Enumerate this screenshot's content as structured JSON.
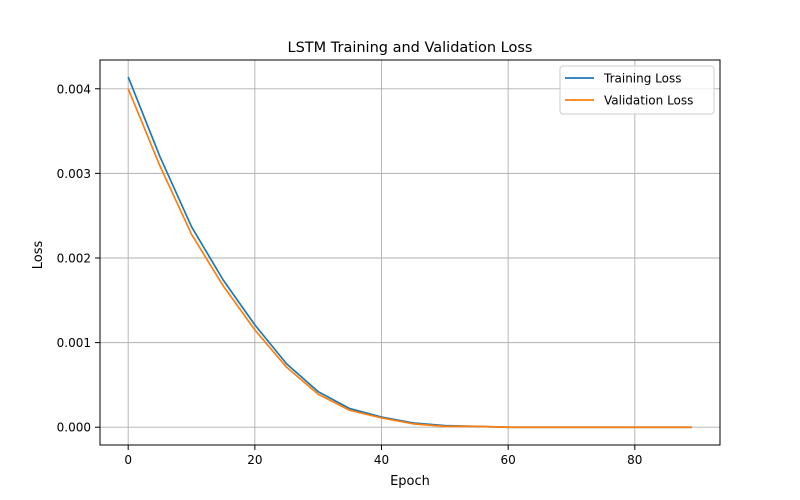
{
  "chart_data": {
    "type": "line",
    "title": "LSTM Training and Validation Loss",
    "xlabel": "Epoch",
    "ylabel": "Loss",
    "xlim": [
      -4.45,
      93.45
    ],
    "ylim": [
      -0.00021,
      0.00434
    ],
    "xticks": [
      0,
      20,
      40,
      60,
      80
    ],
    "xtick_labels": [
      "0",
      "20",
      "40",
      "60",
      "80"
    ],
    "yticks": [
      0.0,
      0.001,
      0.002,
      0.003,
      0.004
    ],
    "ytick_labels": [
      "0.000",
      "0.001",
      "0.002",
      "0.003",
      "0.004"
    ],
    "grid": true,
    "legend_position": "top-right",
    "epochs": 90,
    "series": [
      {
        "name": "Training Loss",
        "color": "#1f77b4",
        "x": [
          0,
          5,
          10,
          15,
          20,
          25,
          30,
          35,
          40,
          45,
          50,
          55,
          60,
          65,
          70,
          75,
          80,
          85,
          89
        ],
        "values": [
          0.00414,
          0.0032,
          0.00237,
          0.00174,
          0.00121,
          0.00075,
          0.00042,
          0.00022,
          0.00012,
          5e-05,
          2e-05,
          1e-05,
          0.0,
          0.0,
          0.0,
          0.0,
          0.0,
          0.0,
          0.0
        ]
      },
      {
        "name": "Validation Loss",
        "color": "#ff7f0e",
        "x": [
          0,
          5,
          10,
          15,
          20,
          25,
          30,
          35,
          40,
          45,
          50,
          55,
          60,
          65,
          70,
          75,
          80,
          85,
          89
        ],
        "values": [
          0.004,
          0.00309,
          0.00228,
          0.00167,
          0.00115,
          0.00071,
          0.00039,
          0.0002,
          0.00011,
          4e-05,
          1e-05,
          1e-05,
          0.0,
          0.0,
          0.0,
          0.0,
          0.0,
          0.0,
          0.0
        ]
      }
    ]
  }
}
